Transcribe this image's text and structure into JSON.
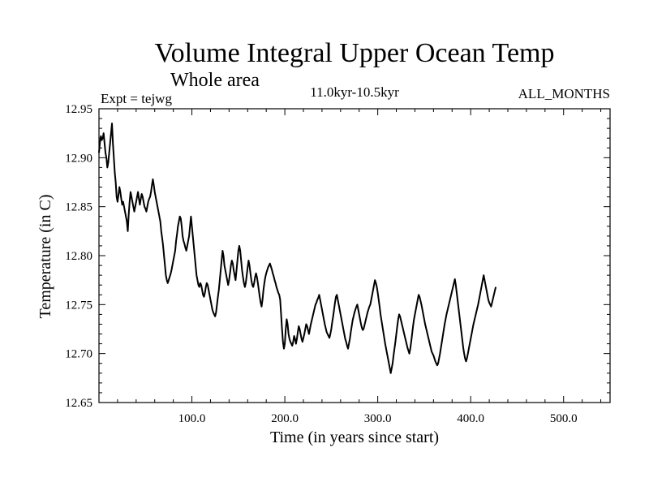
{
  "chart_data": {
    "type": "line",
    "title": "Volume Integral Upper Ocean Temp",
    "subtitle": "Whole area",
    "experiment_label": "Expt = tejwg",
    "period_label": "11.0kyr-10.5kyr",
    "months_label": "ALL_MONTHS",
    "xlabel": "Time (in years since start)",
    "ylabel": "Temperature (in C)",
    "xlim": [
      0,
      550
    ],
    "ylim": [
      12.65,
      12.95
    ],
    "x_ticks": [
      100,
      200,
      300,
      400,
      500
    ],
    "x_tick_labels": [
      "100.0",
      "200.0",
      "300.0",
      "400.0",
      "500.0"
    ],
    "y_ticks": [
      12.65,
      12.7,
      12.75,
      12.8,
      12.85,
      12.9,
      12.95
    ],
    "y_tick_labels": [
      "12.65",
      "12.70",
      "12.75",
      "12.80",
      "12.85",
      "12.90",
      "12.95"
    ],
    "grid": false,
    "series": [
      {
        "name": "Volume Integral Upper Ocean Temp",
        "x_start": 0,
        "x_step": 1,
        "values": [
          12.905,
          12.915,
          12.922,
          12.918,
          12.92,
          12.925,
          12.915,
          12.905,
          12.9,
          12.89,
          12.895,
          12.905,
          12.915,
          12.925,
          12.935,
          12.915,
          12.9,
          12.885,
          12.875,
          12.86,
          12.855,
          12.862,
          12.87,
          12.865,
          12.858,
          12.852,
          12.855,
          12.85,
          12.845,
          12.84,
          12.835,
          12.825,
          12.842,
          12.855,
          12.865,
          12.86,
          12.855,
          12.85,
          12.845,
          12.85,
          12.855,
          12.86,
          12.865,
          12.858,
          12.852,
          12.858,
          12.863,
          12.86,
          12.855,
          12.85,
          12.848,
          12.845,
          12.85,
          12.855,
          12.858,
          12.86,
          12.865,
          12.872,
          12.878,
          12.872,
          12.865,
          12.86,
          12.855,
          12.85,
          12.845,
          12.84,
          12.835,
          12.825,
          12.818,
          12.81,
          12.8,
          12.79,
          12.78,
          12.775,
          12.772,
          12.775,
          12.778,
          12.781,
          12.785,
          12.79,
          12.795,
          12.8,
          12.805,
          12.815,
          12.822,
          12.83,
          12.835,
          12.84,
          12.838,
          12.83,
          12.82,
          12.815,
          12.812,
          12.808,
          12.805,
          12.81,
          12.815,
          12.82,
          12.83,
          12.84,
          12.83,
          12.82,
          12.81,
          12.8,
          12.79,
          12.78,
          12.775,
          12.77,
          12.768,
          12.772,
          12.77,
          12.765,
          12.76,
          12.758,
          12.762,
          12.768,
          12.772,
          12.77,
          12.765,
          12.76,
          12.755,
          12.75,
          12.745,
          12.742,
          12.74,
          12.738,
          12.742,
          12.75,
          12.758,
          12.765,
          12.775,
          12.785,
          12.795,
          12.805,
          12.8,
          12.79,
          12.785,
          12.78,
          12.775,
          12.77,
          12.775,
          12.782,
          12.79,
          12.795,
          12.792,
          12.785,
          12.78,
          12.775,
          12.785,
          12.795,
          12.805,
          12.81,
          12.805,
          12.795,
          12.785,
          12.778,
          12.772,
          12.768,
          12.772,
          12.78,
          12.788,
          12.795,
          12.79,
          12.782,
          12.775,
          12.77,
          12.768,
          12.772,
          12.778,
          12.782,
          12.778,
          12.772,
          12.765,
          12.758,
          12.752,
          12.748,
          12.755,
          12.765,
          12.772,
          12.778,
          12.782,
          12.785,
          12.788,
          12.79,
          12.792,
          12.789,
          12.786,
          12.782,
          12.779,
          12.775,
          12.772,
          12.768,
          12.765,
          12.762,
          12.76,
          12.755,
          12.74,
          12.725,
          12.712,
          12.705,
          12.71,
          12.725,
          12.735,
          12.73,
          12.72,
          12.715,
          12.712,
          12.71,
          12.708,
          12.712,
          12.718,
          12.715,
          12.71,
          12.715,
          12.722,
          12.728,
          12.725,
          12.72,
          12.715,
          12.712,
          12.716,
          12.72,
          12.725,
          12.73,
          12.728,
          12.724,
          12.72,
          12.725,
          12.73,
          12.734,
          12.738,
          12.742,
          12.746,
          12.75,
          12.752,
          12.755,
          12.757,
          12.76,
          12.755,
          12.75,
          12.745,
          12.74,
          12.735,
          12.73,
          12.726,
          12.722,
          12.72,
          12.718,
          12.716,
          12.72,
          12.725,
          12.732,
          12.738,
          12.745,
          12.752,
          12.758,
          12.76,
          12.755,
          12.75,
          12.745,
          12.74,
          12.735,
          12.73,
          12.725,
          12.72,
          12.715,
          12.712,
          12.708,
          12.705,
          12.71,
          12.715,
          12.722,
          12.728,
          12.734,
          12.738,
          12.742,
          12.745,
          12.748,
          12.75,
          12.745,
          12.74,
          12.735,
          12.73,
          12.726,
          12.724,
          12.726,
          12.73,
          12.734,
          12.738,
          12.742,
          12.745,
          12.748,
          12.75,
          12.755,
          12.76,
          12.765,
          12.77,
          12.775,
          12.772,
          12.768,
          12.762,
          12.755,
          12.748,
          12.74,
          12.734,
          12.728,
          12.722,
          12.716,
          12.71,
          12.705,
          12.7,
          12.695,
          12.69,
          12.685,
          12.68,
          12.685,
          12.69,
          12.698,
          12.705,
          12.712,
          12.72,
          12.728,
          12.735,
          12.74,
          12.738,
          12.734,
          12.73,
          12.726,
          12.722,
          12.718,
          12.714,
          12.71,
          12.706,
          12.703,
          12.7,
          12.705,
          12.712,
          12.72,
          12.728,
          12.735,
          12.74,
          12.745,
          12.75,
          12.755,
          12.76,
          12.758,
          12.754,
          12.75,
          12.745,
          12.74,
          12.735,
          12.73,
          12.726,
          12.722,
          12.718,
          12.714,
          12.71,
          12.706,
          12.702,
          12.7,
          12.698,
          12.695,
          12.692,
          12.69,
          12.688,
          12.69,
          12.695,
          12.7,
          12.706,
          12.712,
          12.718,
          12.724,
          12.73,
          12.735,
          12.74,
          12.744,
          12.748,
          12.752,
          12.756,
          12.76,
          12.764,
          12.768,
          12.772,
          12.776,
          12.77,
          12.762,
          12.754,
          12.746,
          12.738,
          12.73,
          12.722,
          12.714,
          12.706,
          12.7,
          12.695,
          12.692,
          12.695,
          12.7,
          12.705,
          12.71,
          12.715,
          12.72,
          12.725,
          12.73,
          12.734,
          12.738,
          12.742,
          12.746,
          12.75,
          12.755,
          12.76,
          12.765,
          12.77,
          12.775,
          12.78,
          12.775,
          12.77,
          12.765,
          12.76,
          12.755,
          12.752,
          12.75,
          12.748,
          12.752,
          12.756,
          12.76,
          12.764,
          12.768
        ]
      }
    ]
  }
}
